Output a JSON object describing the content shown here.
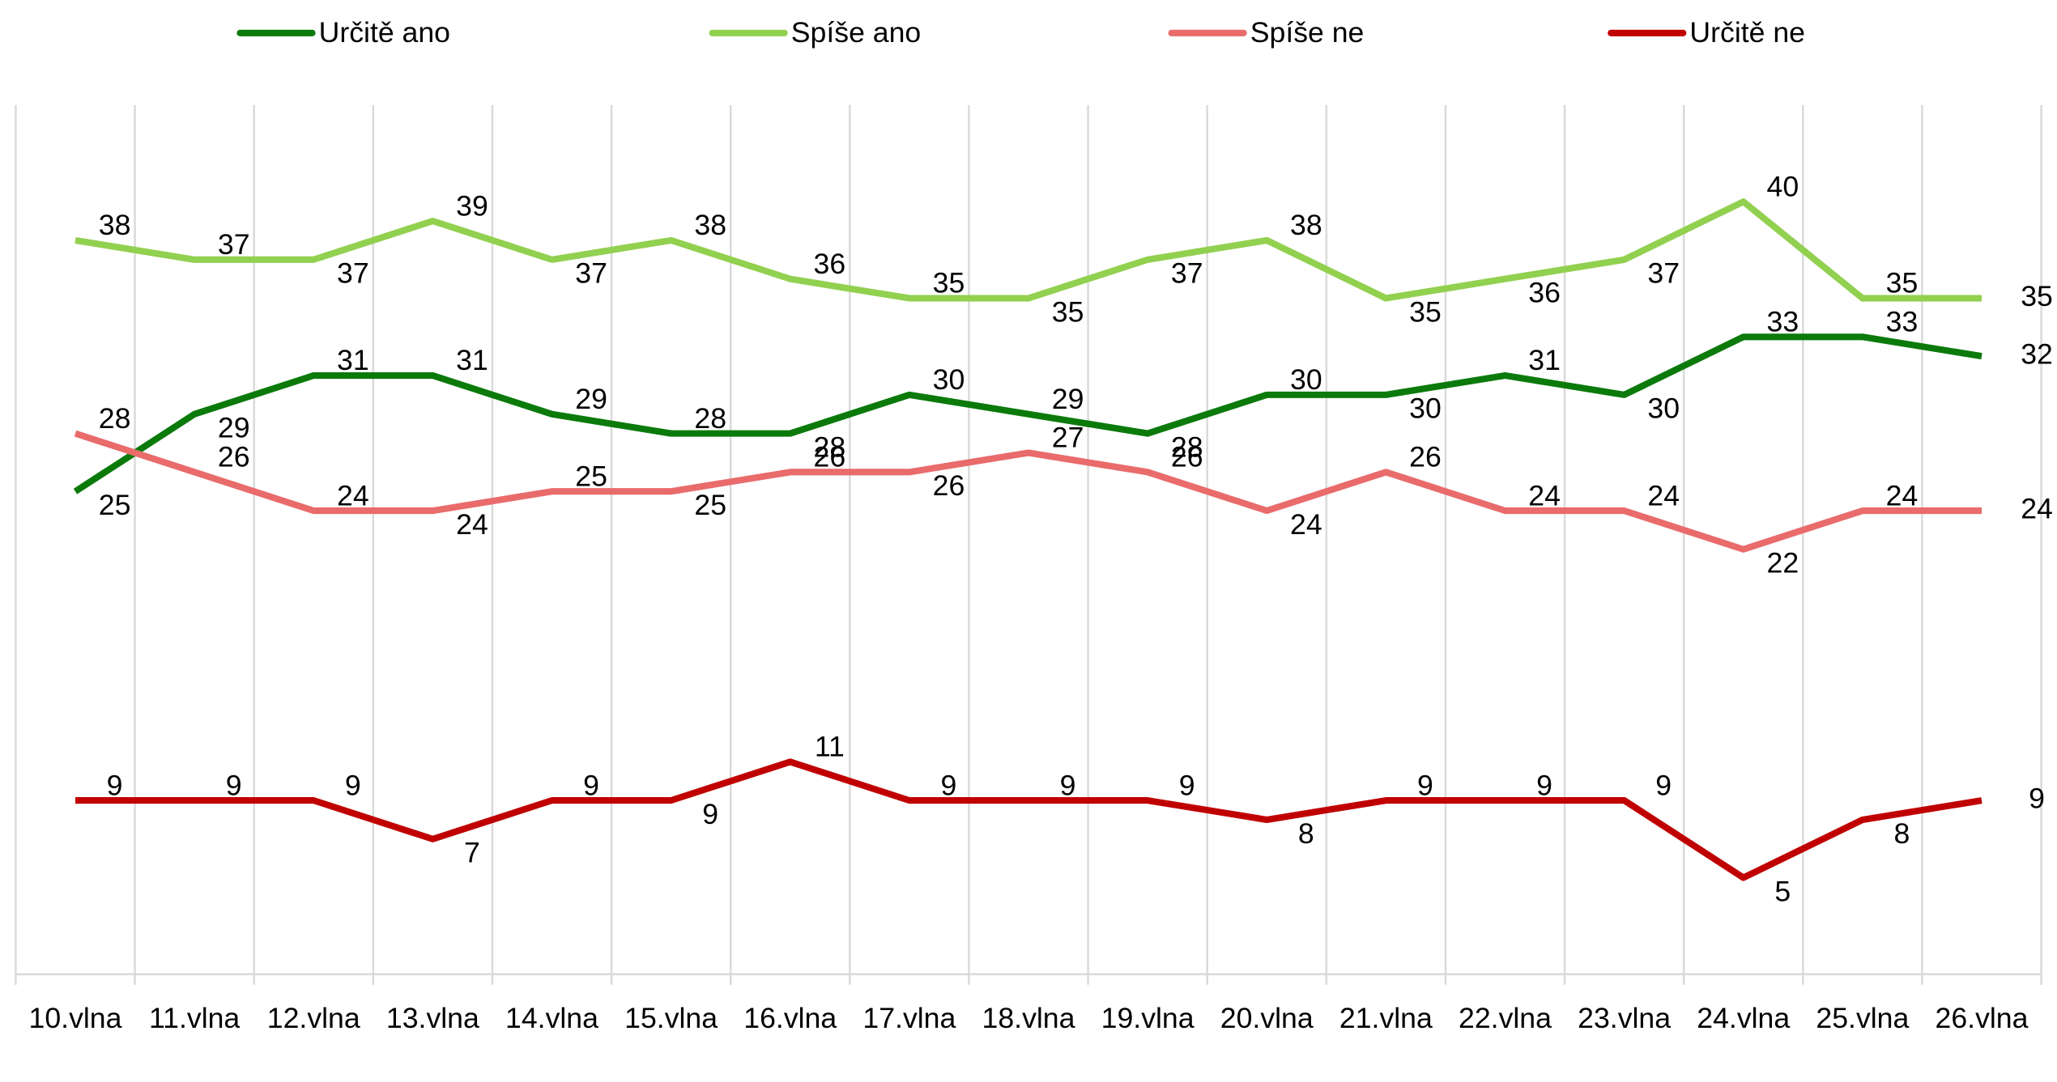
{
  "chart_data": {
    "type": "line",
    "categories": [
      "10.vlna",
      "11.vlna",
      "12.vlna",
      "13.vlna",
      "14.vlna",
      "15.vlna",
      "16.vlna",
      "17.vlna",
      "18.vlna",
      "19.vlna",
      "20.vlna",
      "21.vlna",
      "22.vlna",
      "23.vlna",
      "24.vlna",
      "25.vlna",
      "26.vlna"
    ],
    "series": [
      {
        "name": "Určitě ano",
        "color": "#0b7a0b",
        "values": [
          25,
          29,
          31,
          31,
          29,
          28,
          28,
          30,
          29,
          28,
          30,
          30,
          31,
          30,
          33,
          33,
          32
        ]
      },
      {
        "name": "Spíše ano",
        "color": "#92d050",
        "values": [
          38,
          37,
          37,
          39,
          37,
          38,
          36,
          35,
          35,
          37,
          38,
          35,
          36,
          37,
          40,
          35,
          35
        ]
      },
      {
        "name": "Spíše ne",
        "color": "#e96b6b",
        "values": [
          28,
          26,
          24,
          24,
          25,
          25,
          26,
          26,
          27,
          26,
          24,
          26,
          24,
          24,
          22,
          24,
          24
        ]
      },
      {
        "name": "Určitě ne",
        "color": "#c00000",
        "values": [
          9,
          9,
          9,
          7,
          9,
          9,
          11,
          9,
          9,
          9,
          8,
          9,
          9,
          9,
          5,
          8,
          9
        ]
      }
    ],
    "ylim": [
      0,
      45
    ],
    "grid": true
  }
}
